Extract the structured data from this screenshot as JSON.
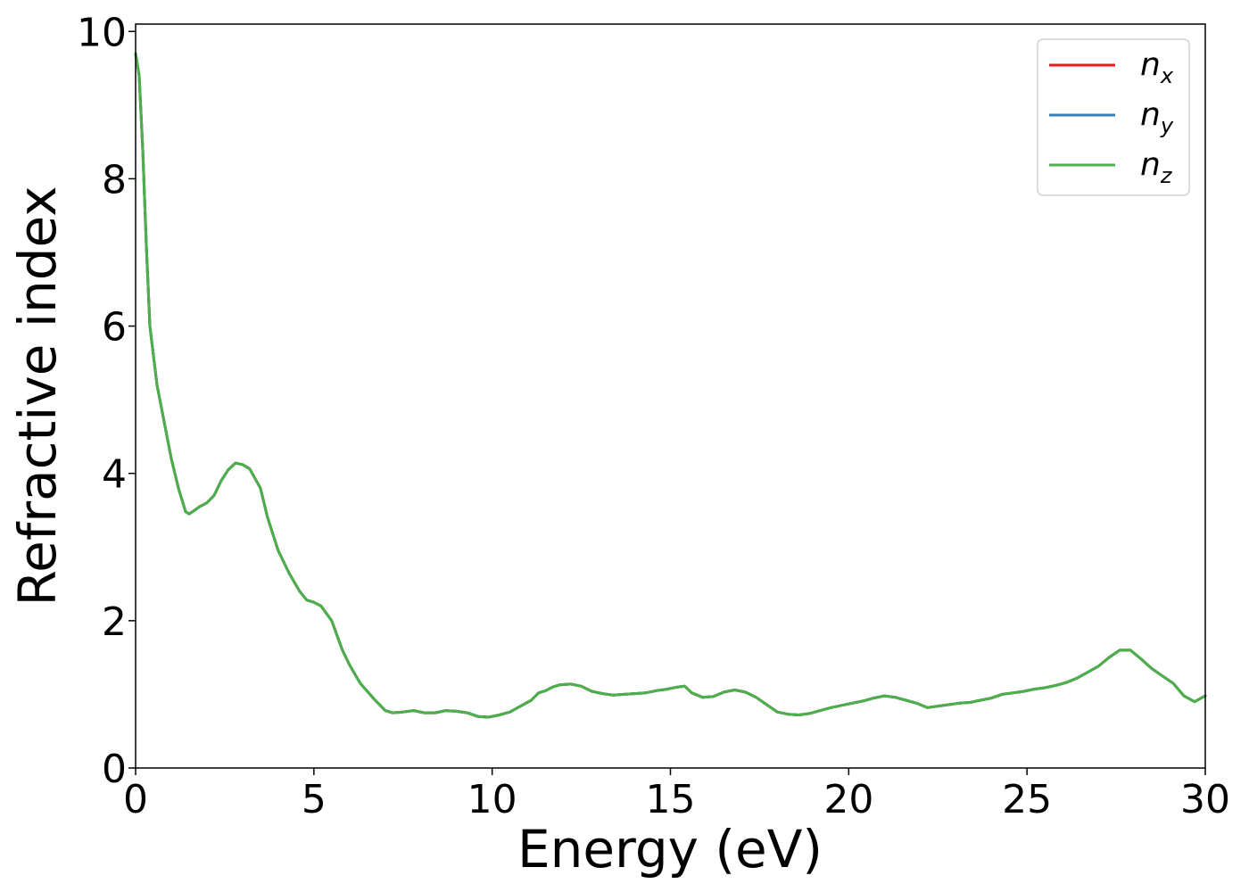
{
  "chart_data": {
    "type": "line",
    "title": "",
    "xlabel": "Energy (eV)",
    "ylabel": "Refractive index",
    "xlim": [
      0,
      30
    ],
    "ylim": [
      0,
      10.1
    ],
    "xticks": [
      0,
      5,
      10,
      15,
      20,
      25,
      30
    ],
    "xtick_labels": [
      "0",
      "5",
      "10",
      "15",
      "20",
      "25",
      "30"
    ],
    "yticks": [
      0,
      2,
      4,
      6,
      8,
      10
    ],
    "ytick_labels": [
      "0",
      "2",
      "4",
      "6",
      "8",
      "10"
    ],
    "grid": false,
    "legend_position": "top-right",
    "x": [
      0,
      0.1,
      0.2,
      0.3,
      0.4,
      0.5,
      0.6,
      0.8,
      1.0,
      1.2,
      1.4,
      1.5,
      1.6,
      1.8,
      2.0,
      2.2,
      2.4,
      2.6,
      2.8,
      3.0,
      3.2,
      3.5,
      3.7,
      4.0,
      4.3,
      4.6,
      4.8,
      5.0,
      5.2,
      5.5,
      5.8,
      6.0,
      6.3,
      6.7,
      7.0,
      7.2,
      7.5,
      7.8,
      8.1,
      8.4,
      8.7,
      9.0,
      9.3,
      9.6,
      9.9,
      10.2,
      10.5,
      10.8,
      11.1,
      11.3,
      11.5,
      11.7,
      11.9,
      12.2,
      12.5,
      12.8,
      13.1,
      13.4,
      13.7,
      14.0,
      14.3,
      14.6,
      14.9,
      15.2,
      15.4,
      15.6,
      15.9,
      16.2,
      16.5,
      16.8,
      17.1,
      17.4,
      17.7,
      18.0,
      18.3,
      18.6,
      18.9,
      19.2,
      19.5,
      19.8,
      20.1,
      20.4,
      20.7,
      21.0,
      21.3,
      21.6,
      21.9,
      22.2,
      22.5,
      22.8,
      23.1,
      23.4,
      23.7,
      24.0,
      24.3,
      24.6,
      24.9,
      25.2,
      25.5,
      25.8,
      26.1,
      26.4,
      26.7,
      27.0,
      27.3,
      27.6,
      27.9,
      28.2,
      28.5,
      28.8,
      29.1,
      29.4,
      29.7,
      30.0
    ],
    "series": [
      {
        "name": "n_x",
        "color": "#e41a1c",
        "values": [
          9.7,
          9.4,
          8.4,
          7.1,
          6.0,
          5.6,
          5.2,
          4.7,
          4.2,
          3.8,
          3.48,
          3.45,
          3.48,
          3.55,
          3.6,
          3.7,
          3.9,
          4.05,
          4.14,
          4.12,
          4.06,
          3.8,
          3.4,
          2.95,
          2.65,
          2.4,
          2.28,
          2.25,
          2.2,
          2.0,
          1.6,
          1.4,
          1.15,
          0.93,
          0.78,
          0.75,
          0.76,
          0.78,
          0.75,
          0.75,
          0.78,
          0.77,
          0.75,
          0.7,
          0.69,
          0.72,
          0.76,
          0.84,
          0.92,
          1.02,
          1.05,
          1.1,
          1.13,
          1.14,
          1.11,
          1.04,
          1.01,
          0.99,
          1.0,
          1.01,
          1.02,
          1.05,
          1.07,
          1.1,
          1.11,
          1.02,
          0.96,
          0.97,
          1.03,
          1.06,
          1.03,
          0.96,
          0.86,
          0.76,
          0.73,
          0.72,
          0.74,
          0.78,
          0.82,
          0.85,
          0.88,
          0.91,
          0.95,
          0.98,
          0.96,
          0.92,
          0.88,
          0.82,
          0.84,
          0.86,
          0.88,
          0.89,
          0.92,
          0.95,
          1.0,
          1.02,
          1.04,
          1.07,
          1.09,
          1.12,
          1.16,
          1.22,
          1.3,
          1.38,
          1.5,
          1.6,
          1.6,
          1.48,
          1.35,
          1.25,
          1.15,
          0.98,
          0.9,
          0.98
        ]
      },
      {
        "name": "n_y",
        "color": "#377eb8",
        "values": [
          9.7,
          9.4,
          8.4,
          7.1,
          6.0,
          5.6,
          5.2,
          4.7,
          4.2,
          3.8,
          3.48,
          3.45,
          3.48,
          3.55,
          3.6,
          3.7,
          3.9,
          4.05,
          4.14,
          4.12,
          4.06,
          3.8,
          3.4,
          2.95,
          2.65,
          2.4,
          2.28,
          2.25,
          2.2,
          2.0,
          1.6,
          1.4,
          1.15,
          0.93,
          0.78,
          0.75,
          0.76,
          0.78,
          0.75,
          0.75,
          0.78,
          0.77,
          0.75,
          0.7,
          0.69,
          0.72,
          0.76,
          0.84,
          0.92,
          1.02,
          1.05,
          1.1,
          1.13,
          1.14,
          1.11,
          1.04,
          1.01,
          0.99,
          1.0,
          1.01,
          1.02,
          1.05,
          1.07,
          1.1,
          1.11,
          1.02,
          0.96,
          0.97,
          1.03,
          1.06,
          1.03,
          0.96,
          0.86,
          0.76,
          0.73,
          0.72,
          0.74,
          0.78,
          0.82,
          0.85,
          0.88,
          0.91,
          0.95,
          0.98,
          0.96,
          0.92,
          0.88,
          0.82,
          0.84,
          0.86,
          0.88,
          0.89,
          0.92,
          0.95,
          1.0,
          1.02,
          1.04,
          1.07,
          1.09,
          1.12,
          1.16,
          1.22,
          1.3,
          1.38,
          1.5,
          1.6,
          1.6,
          1.48,
          1.35,
          1.25,
          1.15,
          0.98,
          0.9,
          0.98
        ]
      },
      {
        "name": "n_z",
        "color": "#4daf4a",
        "values": [
          9.7,
          9.4,
          8.4,
          7.1,
          6.0,
          5.6,
          5.2,
          4.7,
          4.2,
          3.8,
          3.48,
          3.45,
          3.48,
          3.55,
          3.6,
          3.7,
          3.9,
          4.05,
          4.14,
          4.12,
          4.06,
          3.8,
          3.4,
          2.95,
          2.65,
          2.4,
          2.28,
          2.25,
          2.2,
          2.0,
          1.6,
          1.4,
          1.15,
          0.93,
          0.78,
          0.75,
          0.76,
          0.78,
          0.75,
          0.75,
          0.78,
          0.77,
          0.75,
          0.7,
          0.69,
          0.72,
          0.76,
          0.84,
          0.92,
          1.02,
          1.05,
          1.1,
          1.13,
          1.14,
          1.11,
          1.04,
          1.01,
          0.99,
          1.0,
          1.01,
          1.02,
          1.05,
          1.07,
          1.1,
          1.11,
          1.02,
          0.96,
          0.97,
          1.03,
          1.06,
          1.03,
          0.96,
          0.86,
          0.76,
          0.73,
          0.72,
          0.74,
          0.78,
          0.82,
          0.85,
          0.88,
          0.91,
          0.95,
          0.98,
          0.96,
          0.92,
          0.88,
          0.82,
          0.84,
          0.86,
          0.88,
          0.89,
          0.92,
          0.95,
          1.0,
          1.02,
          1.04,
          1.07,
          1.09,
          1.12,
          1.16,
          1.22,
          1.3,
          1.38,
          1.5,
          1.6,
          1.6,
          1.48,
          1.35,
          1.25,
          1.15,
          0.98,
          0.9,
          0.98
        ]
      }
    ],
    "legend": [
      {
        "base": "n",
        "sub": "x",
        "color": "#e41a1c"
      },
      {
        "base": "n",
        "sub": "y",
        "color": "#377eb8"
      },
      {
        "base": "n",
        "sub": "z",
        "color": "#4daf4a"
      }
    ]
  }
}
